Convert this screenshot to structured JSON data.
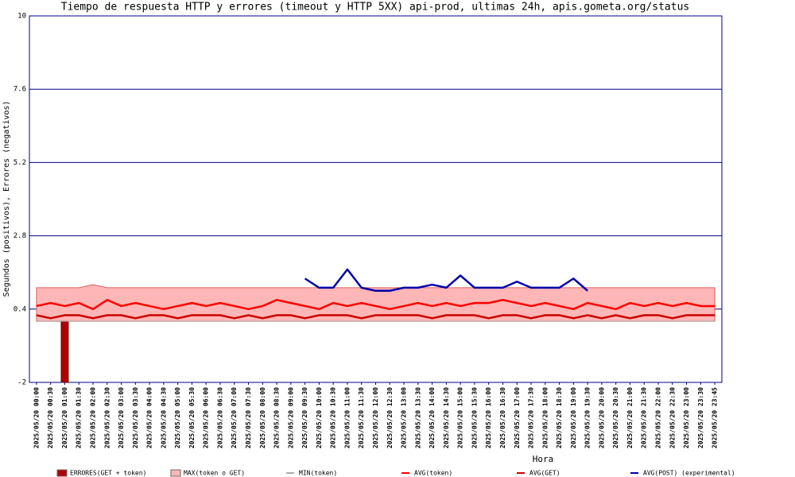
{
  "chart_data": {
    "type": "combo",
    "title": "Tiempo de respuesta HTTP y errores (timeout y HTTP 5XX) api-prod, ultimas 24h, apis.gometa.org/status",
    "x_label": "Hora",
    "y_label": "Segundos (positivos), Errores (negativos)",
    "categories": [
      "2025/05/20 00:00",
      "2025/05/20 00:30",
      "2025/05/20 01:00",
      "2025/05/20 01:30",
      "2025/05/20 02:00",
      "2025/05/20 02:30",
      "2025/05/20 03:00",
      "2025/05/20 03:30",
      "2025/05/20 04:00",
      "2025/05/20 04:30",
      "2025/05/20 05:00",
      "2025/05/20 05:30",
      "2025/05/20 06:00",
      "2025/05/20 06:30",
      "2025/05/20 07:00",
      "2025/05/20 07:30",
      "2025/05/20 08:00",
      "2025/05/20 08:30",
      "2025/05/20 09:00",
      "2025/05/20 09:30",
      "2025/05/20 10:00",
      "2025/05/20 10:30",
      "2025/05/20 11:00",
      "2025/05/20 11:30",
      "2025/05/20 12:00",
      "2025/05/20 12:30",
      "2025/05/20 13:00",
      "2025/05/20 13:30",
      "2025/05/20 14:00",
      "2025/05/20 14:30",
      "2025/05/20 15:00",
      "2025/05/20 15:30",
      "2025/05/20 16:00",
      "2025/05/20 16:30",
      "2025/05/20 17:00",
      "2025/05/20 17:30",
      "2025/05/20 18:00",
      "2025/05/20 18:30",
      "2025/05/20 19:00",
      "2025/05/20 19:30",
      "2025/05/20 20:00",
      "2025/05/20 20:30",
      "2025/05/20 21:00",
      "2025/05/20 21:30",
      "2025/05/20 22:00",
      "2025/05/20 22:30",
      "2025/05/20 23:00",
      "2025/05/20 23:30",
      "2025/05/20 23:45"
    ],
    "series": [
      {
        "name": "ERRORES(GET + token)",
        "style": "bar",
        "color": "#b00000",
        "values": [
          0,
          0,
          -2,
          0,
          0,
          0,
          0,
          0,
          0,
          0,
          0,
          0,
          0,
          0,
          0,
          0,
          0,
          0,
          0,
          0,
          0,
          0,
          0,
          0,
          0,
          0,
          0,
          0,
          0,
          0,
          0,
          0,
          0,
          0,
          0,
          0,
          0,
          0,
          0,
          0,
          0,
          0,
          0,
          0,
          0,
          0,
          0,
          0,
          0
        ]
      },
      {
        "name": "MAX(token o GET)",
        "style": "area",
        "color": "#ffb6b6",
        "values": [
          1.1,
          1.1,
          1.1,
          1.1,
          1.2,
          1.1,
          1.1,
          1.1,
          1.1,
          1.1,
          1.1,
          1.1,
          1.1,
          1.1,
          1.1,
          1.1,
          1.1,
          1.1,
          1.1,
          1.1,
          1.1,
          1.1,
          1.1,
          1.1,
          1.1,
          1.1,
          1.1,
          1.1,
          1.1,
          1.1,
          1.1,
          1.1,
          1.1,
          1.1,
          1.1,
          1.1,
          1.1,
          1.1,
          1.1,
          1.1,
          1.1,
          1.1,
          1.1,
          1.1,
          1.1,
          1.1,
          1.1,
          1.1,
          1.1
        ]
      },
      {
        "name": "MIN(token)",
        "style": "line",
        "color": "#aaaaaa",
        "values": [
          0,
          0,
          0,
          0,
          0,
          0,
          0,
          0,
          0,
          0,
          0,
          0,
          0,
          0,
          0,
          0,
          0,
          0,
          0,
          0,
          0,
          0,
          0,
          0,
          0,
          0,
          0,
          0,
          0,
          0,
          0,
          0,
          0,
          0,
          0,
          0,
          0,
          0,
          0,
          0,
          0,
          0,
          0,
          0,
          0,
          0,
          0,
          0,
          0
        ]
      },
      {
        "name": "AVG(token)",
        "style": "line",
        "color": "#ff0000",
        "values": [
          0.5,
          0.6,
          0.5,
          0.6,
          0.4,
          0.7,
          0.5,
          0.6,
          0.5,
          0.4,
          0.5,
          0.6,
          0.5,
          0.6,
          0.5,
          0.4,
          0.5,
          0.7,
          0.6,
          0.5,
          0.4,
          0.6,
          0.5,
          0.6,
          0.5,
          0.4,
          0.5,
          0.6,
          0.5,
          0.6,
          0.5,
          0.6,
          0.6,
          0.7,
          0.6,
          0.5,
          0.6,
          0.5,
          0.4,
          0.6,
          0.5,
          0.4,
          0.6,
          0.5,
          0.6,
          0.5,
          0.6,
          0.5,
          0.5
        ]
      },
      {
        "name": "AVG(GET)",
        "style": "line",
        "color": "#cc0000",
        "values": [
          0.2,
          0.1,
          0.2,
          0.2,
          0.1,
          0.2,
          0.2,
          0.1,
          0.2,
          0.2,
          0.1,
          0.2,
          0.2,
          0.2,
          0.1,
          0.2,
          0.1,
          0.2,
          0.2,
          0.1,
          0.2,
          0.2,
          0.2,
          0.1,
          0.2,
          0.2,
          0.2,
          0.2,
          0.1,
          0.2,
          0.2,
          0.2,
          0.1,
          0.2,
          0.2,
          0.1,
          0.2,
          0.2,
          0.1,
          0.2,
          0.1,
          0.2,
          0.1,
          0.2,
          0.2,
          0.1,
          0.2,
          0.2,
          0.2
        ]
      },
      {
        "name": "AVG(POST) (experimental)",
        "style": "line",
        "color": "#0000aa",
        "values": [
          null,
          null,
          null,
          null,
          null,
          null,
          null,
          null,
          null,
          null,
          null,
          null,
          null,
          null,
          null,
          null,
          null,
          null,
          null,
          1.4,
          1.1,
          1.1,
          1.7,
          1.1,
          1.0,
          1.0,
          1.1,
          1.1,
          1.2,
          1.1,
          1.5,
          1.1,
          1.1,
          1.1,
          1.3,
          1.1,
          1.1,
          1.1,
          1.4,
          1.0,
          null,
          null,
          null,
          null,
          null,
          null,
          null,
          null,
          null
        ]
      }
    ],
    "ylim": [
      -2,
      10
    ],
    "yticks": [
      -2,
      0.4,
      2.8,
      5.2,
      7.6,
      10
    ],
    "grid": true
  }
}
